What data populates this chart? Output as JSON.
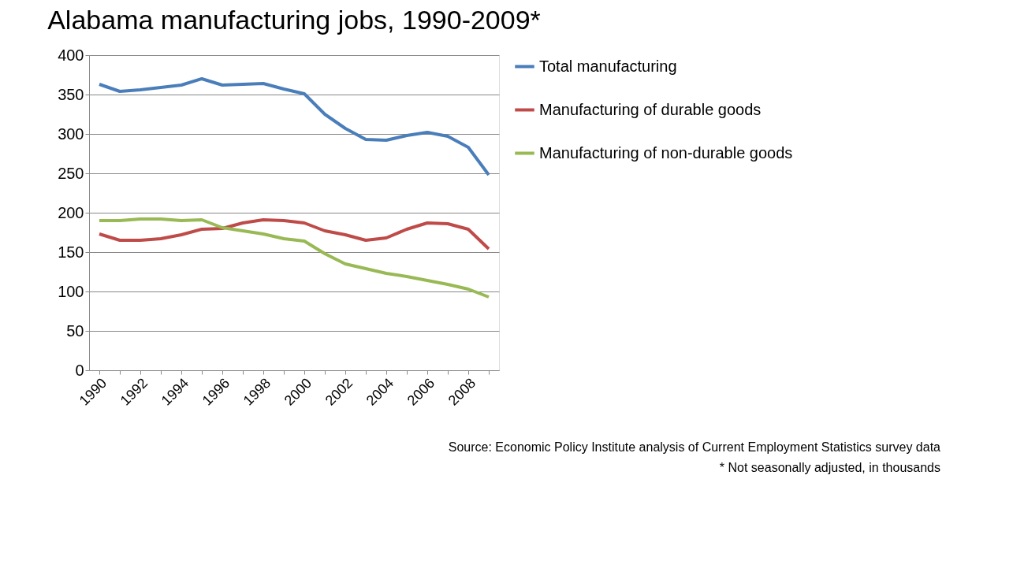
{
  "chart_data": {
    "type": "line",
    "title": "Alabama manufacturing jobs, 1990-2009*",
    "categories": [
      "1990",
      null,
      "1992",
      null,
      "1994",
      null,
      "1996",
      null,
      "1998",
      null,
      "2000",
      null,
      "2002",
      null,
      "2004",
      null,
      "2006",
      null,
      "2008",
      null
    ],
    "series": [
      {
        "name": "Total manufacturing",
        "color": "#4a7ebb",
        "values": [
          363,
          354,
          356,
          359,
          362,
          370,
          362,
          363,
          364,
          357,
          351,
          325,
          307,
          293,
          292,
          298,
          302,
          297,
          283,
          248
        ]
      },
      {
        "name": "Manufacturing of durable goods",
        "color": "#be4b48",
        "values": [
          173,
          165,
          165,
          167,
          172,
          179,
          180,
          187,
          191,
          190,
          187,
          177,
          172,
          165,
          168,
          179,
          187,
          186,
          179,
          154
        ]
      },
      {
        "name": "Manufacturing of non-durable goods",
        "color": "#98b954",
        "values": [
          190,
          190,
          192,
          192,
          190,
          191,
          181,
          177,
          173,
          167,
          164,
          148,
          135,
          129,
          123,
          119,
          114,
          109,
          103,
          93
        ]
      }
    ],
    "ylim": [
      0,
      400
    ],
    "yticks": [
      0,
      50,
      100,
      150,
      200,
      250,
      300,
      350,
      400
    ],
    "grid": "y",
    "legend": "right",
    "marker": "none",
    "line_style": "solid",
    "annotations": [
      "Source: Economic Policy Institute analysis of Current Employment Statistics survey data",
      "* Not seasonally adjusted, in thousands"
    ]
  }
}
